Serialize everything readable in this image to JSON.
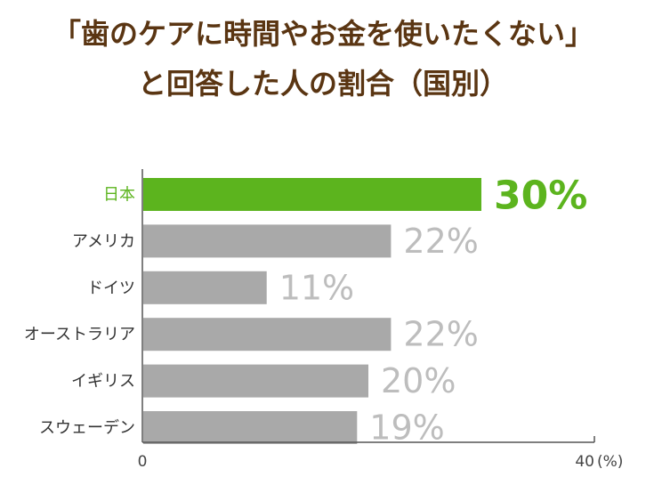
{
  "chart_data": {
    "type": "bar",
    "orientation": "horizontal",
    "title_line1": "「歯のケアに時間やお金を使いたくない」",
    "title_line2": "と回答した人の割合（国別）",
    "categories": [
      "日本",
      "アメリカ",
      "ドイツ",
      "オーストラリア",
      "イギリス",
      "スウェーデン"
    ],
    "values": [
      30,
      22,
      11,
      22,
      20,
      19
    ],
    "value_labels": [
      "30%",
      "22%",
      "11%",
      "22%",
      "20%",
      "19%"
    ],
    "highlight_index": 0,
    "xlim": [
      0,
      40
    ],
    "x_tick_labels": [
      "0",
      "40"
    ],
    "x_unit": "(%)",
    "grid": false,
    "colors": {
      "highlight": "#5cb41e",
      "bar": "#a9a9a9",
      "value_text": "#bdbdbd",
      "title": "#5a3512",
      "axis": "#555555"
    }
  }
}
